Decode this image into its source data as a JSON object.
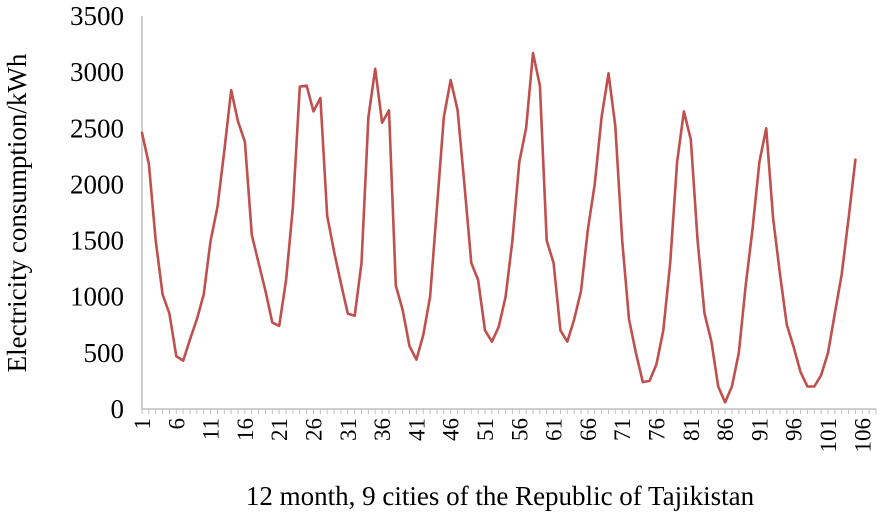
{
  "chart_data": {
    "type": "line",
    "title": "",
    "xlabel": "12 month, 9 cities of the Republic of Tajikistan",
    "ylabel": "Electricity consumption/kWh",
    "xlim": [
      1,
      108
    ],
    "ylim": [
      0,
      3500
    ],
    "yticks": [
      0,
      500,
      1000,
      1500,
      2000,
      2500,
      3000,
      3500
    ],
    "xticks": [
      1,
      6,
      11,
      16,
      21,
      26,
      31,
      36,
      41,
      46,
      51,
      56,
      61,
      66,
      71,
      76,
      81,
      86,
      91,
      96,
      101,
      106
    ],
    "grid": false,
    "legend": "none",
    "colors": {
      "series": "#c0504d",
      "axis": "#bfbfbf"
    },
    "series": [
      {
        "values": [
          2460,
          2180,
          1500,
          1020,
          850,
          470,
          430,
          620,
          800,
          1020,
          1500,
          1800,
          2300,
          2840,
          2560,
          2380,
          1550,
          1300,
          1050,
          770,
          740,
          1150,
          1800,
          2870,
          2880,
          2650,
          2770,
          1720,
          1400,
          1120,
          850,
          830,
          1300,
          2600,
          3030,
          2550,
          2660,
          1100,
          880,
          560,
          440,
          660,
          1000,
          1800,
          2600,
          2930,
          2660,
          2000,
          1300,
          1150,
          700,
          600,
          730,
          1000,
          1500,
          2200,
          2500,
          3170,
          2880,
          1500,
          1300,
          700,
          600,
          800,
          1050,
          1600,
          2000,
          2600,
          2990,
          2520,
          1500,
          800,
          500,
          240,
          250,
          400,
          700,
          1300,
          2200,
          2650,
          2400,
          1500,
          850,
          600,
          200,
          60,
          200,
          500,
          1100,
          1600,
          2200,
          2500,
          1700,
          1200,
          750,
          550,
          330,
          200,
          200,
          300,
          500,
          850,
          1200,
          1700,
          2220
        ]
      }
    ]
  }
}
